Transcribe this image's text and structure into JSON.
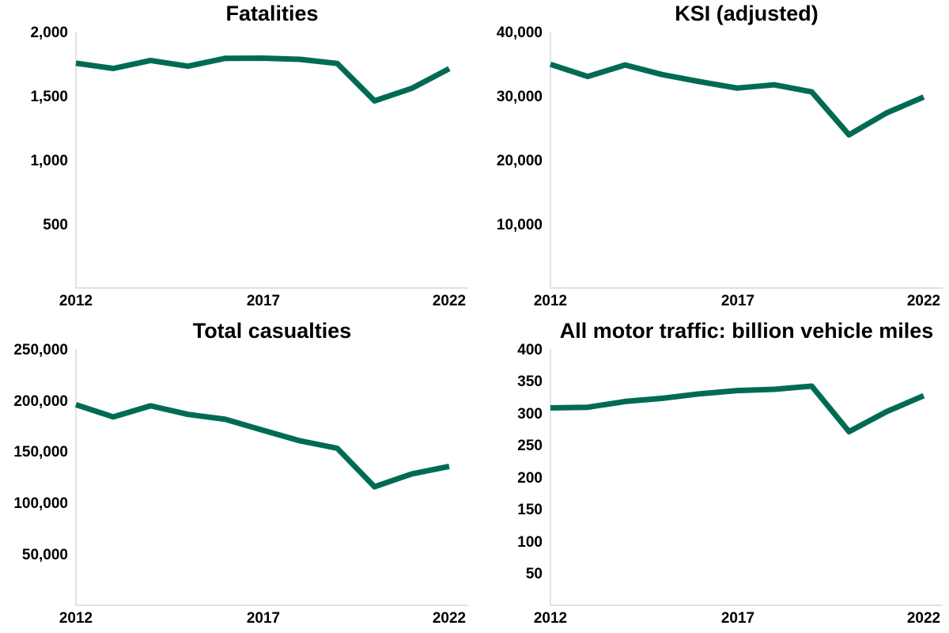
{
  "accent": "#006b54",
  "chart_data": [
    {
      "type": "line",
      "title": "Fatalities",
      "xlabel": "",
      "ylabel": "",
      "x": [
        2012,
        2013,
        2014,
        2015,
        2016,
        2017,
        2018,
        2019,
        2020,
        2021,
        2022
      ],
      "series": [
        {
          "name": "Fatalities",
          "values": [
            1754,
            1713,
            1775,
            1730,
            1792,
            1793,
            1784,
            1752,
            1460,
            1558,
            1711
          ]
        }
      ],
      "xlim": [
        2012,
        2022
      ],
      "ylim": [
        0,
        2000
      ],
      "xticks": [
        "2012",
        "2017",
        "2022"
      ],
      "yticks": [
        "500",
        "1,000",
        "1,500",
        "2,000"
      ],
      "grid": false
    },
    {
      "type": "line",
      "title": "KSI (adjusted)",
      "xlabel": "",
      "ylabel": "",
      "x": [
        2012,
        2013,
        2014,
        2015,
        2016,
        2017,
        2018,
        2019,
        2020,
        2021,
        2022
      ],
      "series": [
        {
          "name": "KSI (adjusted)",
          "values": [
            34900,
            33000,
            34800,
            33300,
            32200,
            31200,
            31700,
            30600,
            23900,
            27300,
            29800
          ]
        }
      ],
      "xlim": [
        2012,
        2022
      ],
      "ylim": [
        0,
        40000
      ],
      "xticks": [
        "2012",
        "2017",
        "2022"
      ],
      "yticks": [
        "10,000",
        "20,000",
        "30,000",
        "40,000"
      ],
      "grid": false
    },
    {
      "type": "line",
      "title": "Total casualties",
      "xlabel": "",
      "ylabel": "",
      "x": [
        2012,
        2013,
        2014,
        2015,
        2016,
        2017,
        2018,
        2019,
        2020,
        2021,
        2022
      ],
      "series": [
        {
          "name": "Total casualties",
          "values": [
            195700,
            183700,
            194500,
            186200,
            181400,
            170800,
            160400,
            153200,
            115600,
            128200,
            135500
          ]
        }
      ],
      "xlim": [
        2012,
        2022
      ],
      "ylim": [
        0,
        250000
      ],
      "xticks": [
        "2012",
        "2017",
        "2022"
      ],
      "yticks": [
        "50,000",
        "100,000",
        "150,000",
        "200,000",
        "250,000"
      ],
      "grid": false
    },
    {
      "type": "line",
      "title": "All motor traffic: billion vehicle miles",
      "xlabel": "",
      "ylabel": "",
      "x": [
        2012,
        2013,
        2014,
        2015,
        2016,
        2017,
        2018,
        2019,
        2020,
        2021,
        2022
      ],
      "series": [
        {
          "name": "All motor traffic",
          "values": [
            308,
            309,
            318,
            323,
            330,
            335,
            337,
            342,
            271,
            302,
            327
          ]
        }
      ],
      "xlim": [
        2012,
        2022
      ],
      "ylim": [
        0,
        400
      ],
      "xticks": [
        "2012",
        "2017",
        "2022"
      ],
      "yticks": [
        "50",
        "100",
        "150",
        "200",
        "250",
        "300",
        "350",
        "400"
      ],
      "grid": false
    }
  ]
}
